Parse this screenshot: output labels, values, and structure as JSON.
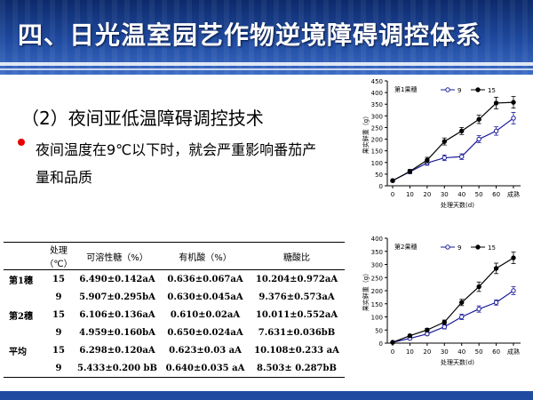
{
  "slide": {
    "title": "四、日光温室园艺作物逆境障碍调控体系",
    "subtitle": "（2）夜间亚低温障碍调控技术",
    "bullet": "夜间温度在9℃以下时，就会严重影响番茄产量和品质"
  },
  "table": {
    "headers": [
      "处理（℃）",
      "可溶性糖（%）",
      "有机酸（%）",
      "糖酸比"
    ],
    "rows": [
      {
        "group": "第1穗",
        "treatment": "15",
        "sugar": "6.490±0.142aA",
        "acid": "0.636±0.067aA",
        "ratio": "10.204±0.972aA"
      },
      {
        "group": "",
        "treatment": "9",
        "sugar": "5.907±0.295bA",
        "acid": "0.630±0.045aA",
        "ratio": "9.376±0.573aA"
      },
      {
        "group": "第2穗",
        "treatment": "15",
        "sugar": "6.106±0.136aA",
        "acid": "0.610±0.02aA",
        "ratio": "10.011±0.552aA"
      },
      {
        "group": "",
        "treatment": "9",
        "sugar": "4.959±0.160bA",
        "acid": "0.650±0.024aA",
        "ratio": "7.631±0.036bB"
      },
      {
        "group": "平均",
        "treatment": "15",
        "sugar": "6.298±0.120aA",
        "acid": "0.623±0.03 aA",
        "ratio": "10.108±0.233 aA"
      },
      {
        "group": "",
        "treatment": "9",
        "sugar": "5.433±0.200 bB",
        "acid": "0.640±0.035 aA",
        "ratio": "8.503± 0.287bB"
      }
    ]
  },
  "chart_data": [
    {
      "type": "line",
      "title": "第1果穗",
      "xlabel": "处理天数(d)",
      "ylabel": "果实鲜重（g）",
      "x_ticks": [
        "0",
        "10",
        "20",
        "30",
        "40",
        "50",
        "60",
        "成熟"
      ],
      "ylim": [
        0,
        450
      ],
      "y_ticks": [
        0,
        50,
        100,
        150,
        200,
        250,
        300,
        350,
        400,
        450
      ],
      "legend": "top-left",
      "series": [
        {
          "name": "9",
          "marker": "open-circle",
          "values": [
            22,
            60,
            98,
            120,
            125,
            200,
            235,
            290
          ],
          "errors": [
            5,
            8,
            10,
            12,
            12,
            15,
            18,
            25
          ]
        },
        {
          "name": "15",
          "marker": "filled-circle",
          "values": [
            22,
            62,
            110,
            190,
            235,
            285,
            355,
            358
          ],
          "errors": [
            5,
            8,
            12,
            15,
            15,
            18,
            25,
            25
          ]
        }
      ]
    },
    {
      "type": "line",
      "title": "第2果穗",
      "xlabel": "处理天数(d)",
      "ylabel": "果实鲜重（g）",
      "x_ticks": [
        "0",
        "10",
        "20",
        "30",
        "40",
        "50",
        "60",
        "成熟"
      ],
      "ylim": [
        0,
        400
      ],
      "y_ticks": [
        0,
        50,
        100,
        150,
        200,
        250,
        300,
        350,
        400
      ],
      "legend": "top-left",
      "series": [
        {
          "name": "9",
          "marker": "open-circle",
          "values": [
            3,
            18,
            35,
            62,
            100,
            130,
            155,
            200
          ],
          "errors": [
            2,
            4,
            5,
            8,
            10,
            12,
            10,
            15
          ]
        },
        {
          "name": "15",
          "marker": "filled-circle",
          "values": [
            3,
            28,
            50,
            80,
            155,
            215,
            285,
            325
          ],
          "errors": [
            2,
            5,
            6,
            8,
            12,
            18,
            20,
            22
          ]
        }
      ]
    }
  ]
}
